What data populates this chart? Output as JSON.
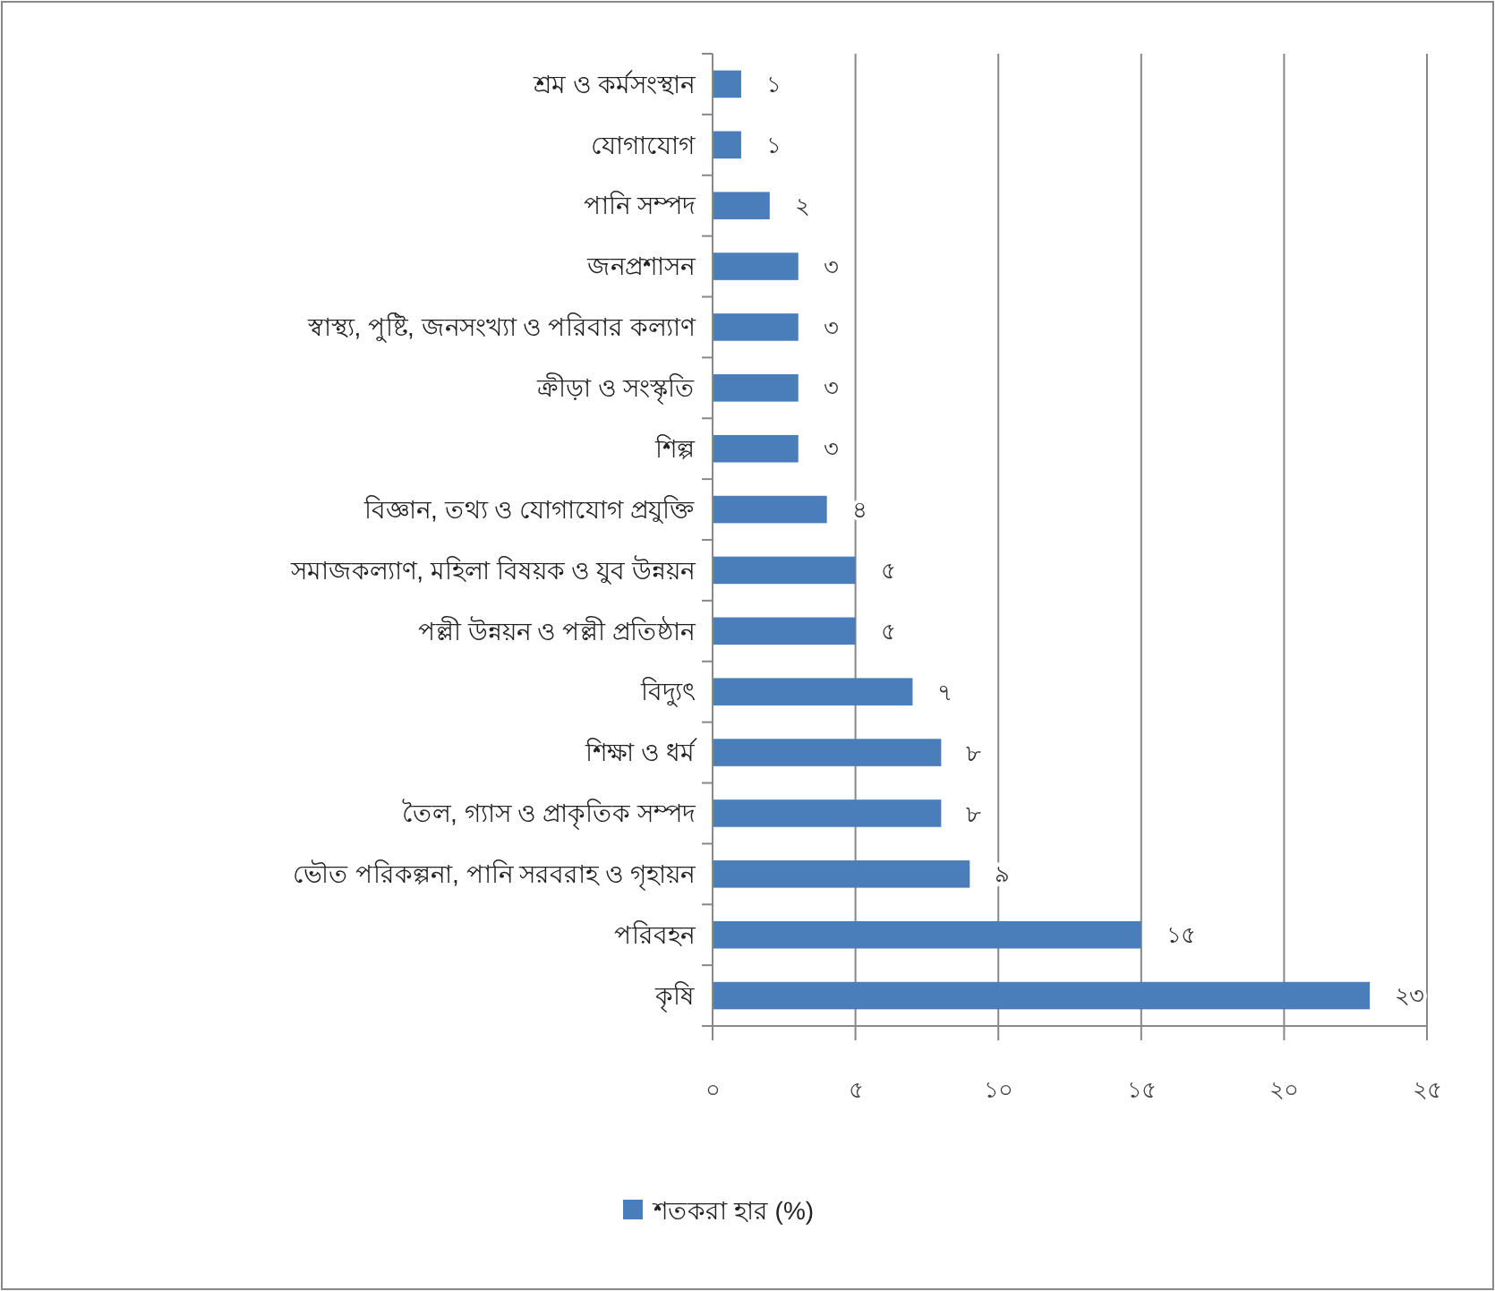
{
  "chart_data": {
    "type": "bar",
    "orientation": "horizontal",
    "categories": [
      "শ্রম ও কর্মসংস্থান",
      "যোগাযোগ",
      "পানি সম্পদ",
      "জনপ্রশাসন",
      "স্বাস্থ্য, পুষ্টি, জনসংখ্যা ও পরিবার কল্যাণ",
      "ক্রীড়া ও সংস্কৃতি",
      "শিল্প",
      "বিজ্ঞান, তথ্য ও যোগাযোগ প্রযুক্তি",
      "সমাজকল্যাণ, মহিলা বিষয়ক ও যুব উন্নয়ন",
      "পল্লী উন্নয়ন ও পল্লী প্রতিষ্ঠান",
      "বিদ্যুৎ",
      "শিক্ষা ও ধর্ম",
      "তৈল, গ্যাস ও প্রাকৃতিক সম্পদ",
      "ভৌত পরিকল্পনা, পানি সরবরাহ ও গৃহায়ন",
      "পরিবহন",
      "কৃষি"
    ],
    "series": [
      {
        "name": "শতকরা হার (%)",
        "color": "#4a7ebb",
        "values": [
          1,
          1,
          2,
          3,
          3,
          3,
          3,
          4,
          5,
          5,
          7,
          8,
          8,
          9,
          15,
          23
        ],
        "value_labels": [
          "১",
          "১",
          "২",
          "৩",
          "৩",
          "৩",
          "৩",
          "৪",
          "৫",
          "৫",
          "৭",
          "৮",
          "৮",
          "৯",
          "১৫",
          "২৩"
        ]
      }
    ],
    "xlim": [
      0,
      25
    ],
    "xticks": [
      {
        "value": 0,
        "label": "০"
      },
      {
        "value": 5,
        "label": "৫"
      },
      {
        "value": 10,
        "label": "১০"
      },
      {
        "value": 15,
        "label": "১৫"
      },
      {
        "value": 20,
        "label": "২০"
      },
      {
        "value": 25,
        "label": "২৫"
      }
    ],
    "grid": "x",
    "legend": "bottom"
  }
}
